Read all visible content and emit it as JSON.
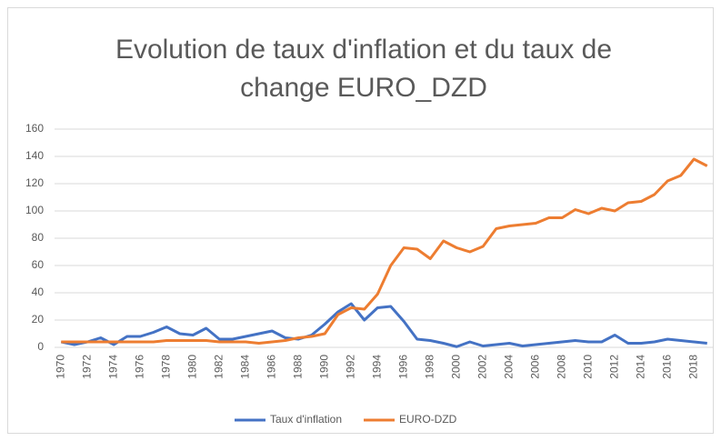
{
  "chart_data": {
    "type": "line",
    "title": "Evolution de taux d'inflation et du taux de change EURO_DZD",
    "categories": [
      "1970",
      null,
      "1972",
      null,
      "1974",
      null,
      "1976",
      null,
      "1978",
      null,
      "1980",
      null,
      "1982",
      null,
      "1984",
      null,
      "1986",
      null,
      "1988",
      null,
      "1990",
      null,
      "1992",
      null,
      "1994",
      null,
      "1996",
      null,
      "1998",
      null,
      "2000",
      null,
      "2002",
      null,
      "2004",
      null,
      "2006",
      null,
      "2008",
      null,
      "2010",
      null,
      "2012",
      null,
      "2014",
      null,
      "2016",
      null,
      "2018",
      null
    ],
    "series": [
      {
        "name": "Taux d'inflation",
        "color": "#4472c4",
        "values": [
          4,
          2,
          4,
          7,
          2,
          8,
          8,
          11,
          15,
          10,
          9,
          14,
          6,
          6,
          8,
          10,
          12,
          7,
          6,
          9,
          17,
          26,
          32,
          20,
          29,
          30,
          19,
          6,
          5,
          3,
          0.5,
          4,
          1,
          2,
          3,
          1,
          2,
          3,
          4,
          5,
          4,
          4,
          9,
          3,
          3,
          4,
          6,
          5,
          4,
          3
        ]
      },
      {
        "name": "EURO-DZD",
        "color": "#ed7d31",
        "values": [
          4,
          4,
          4,
          4,
          4,
          4,
          4,
          4,
          5,
          5,
          5,
          5,
          4,
          4,
          4,
          3,
          4,
          5,
          7,
          8,
          10,
          24,
          29,
          28,
          39,
          60,
          73,
          72,
          65,
          78,
          73,
          70,
          74,
          87,
          89,
          90,
          91,
          95,
          95,
          101,
          98,
          102,
          100,
          106,
          107,
          112,
          122,
          126,
          138,
          133
        ]
      }
    ],
    "ylim": [
      0,
      160
    ],
    "yticks": [
      0,
      20,
      40,
      60,
      80,
      100,
      120,
      140,
      160
    ],
    "grid": true,
    "legend": "bottom"
  }
}
